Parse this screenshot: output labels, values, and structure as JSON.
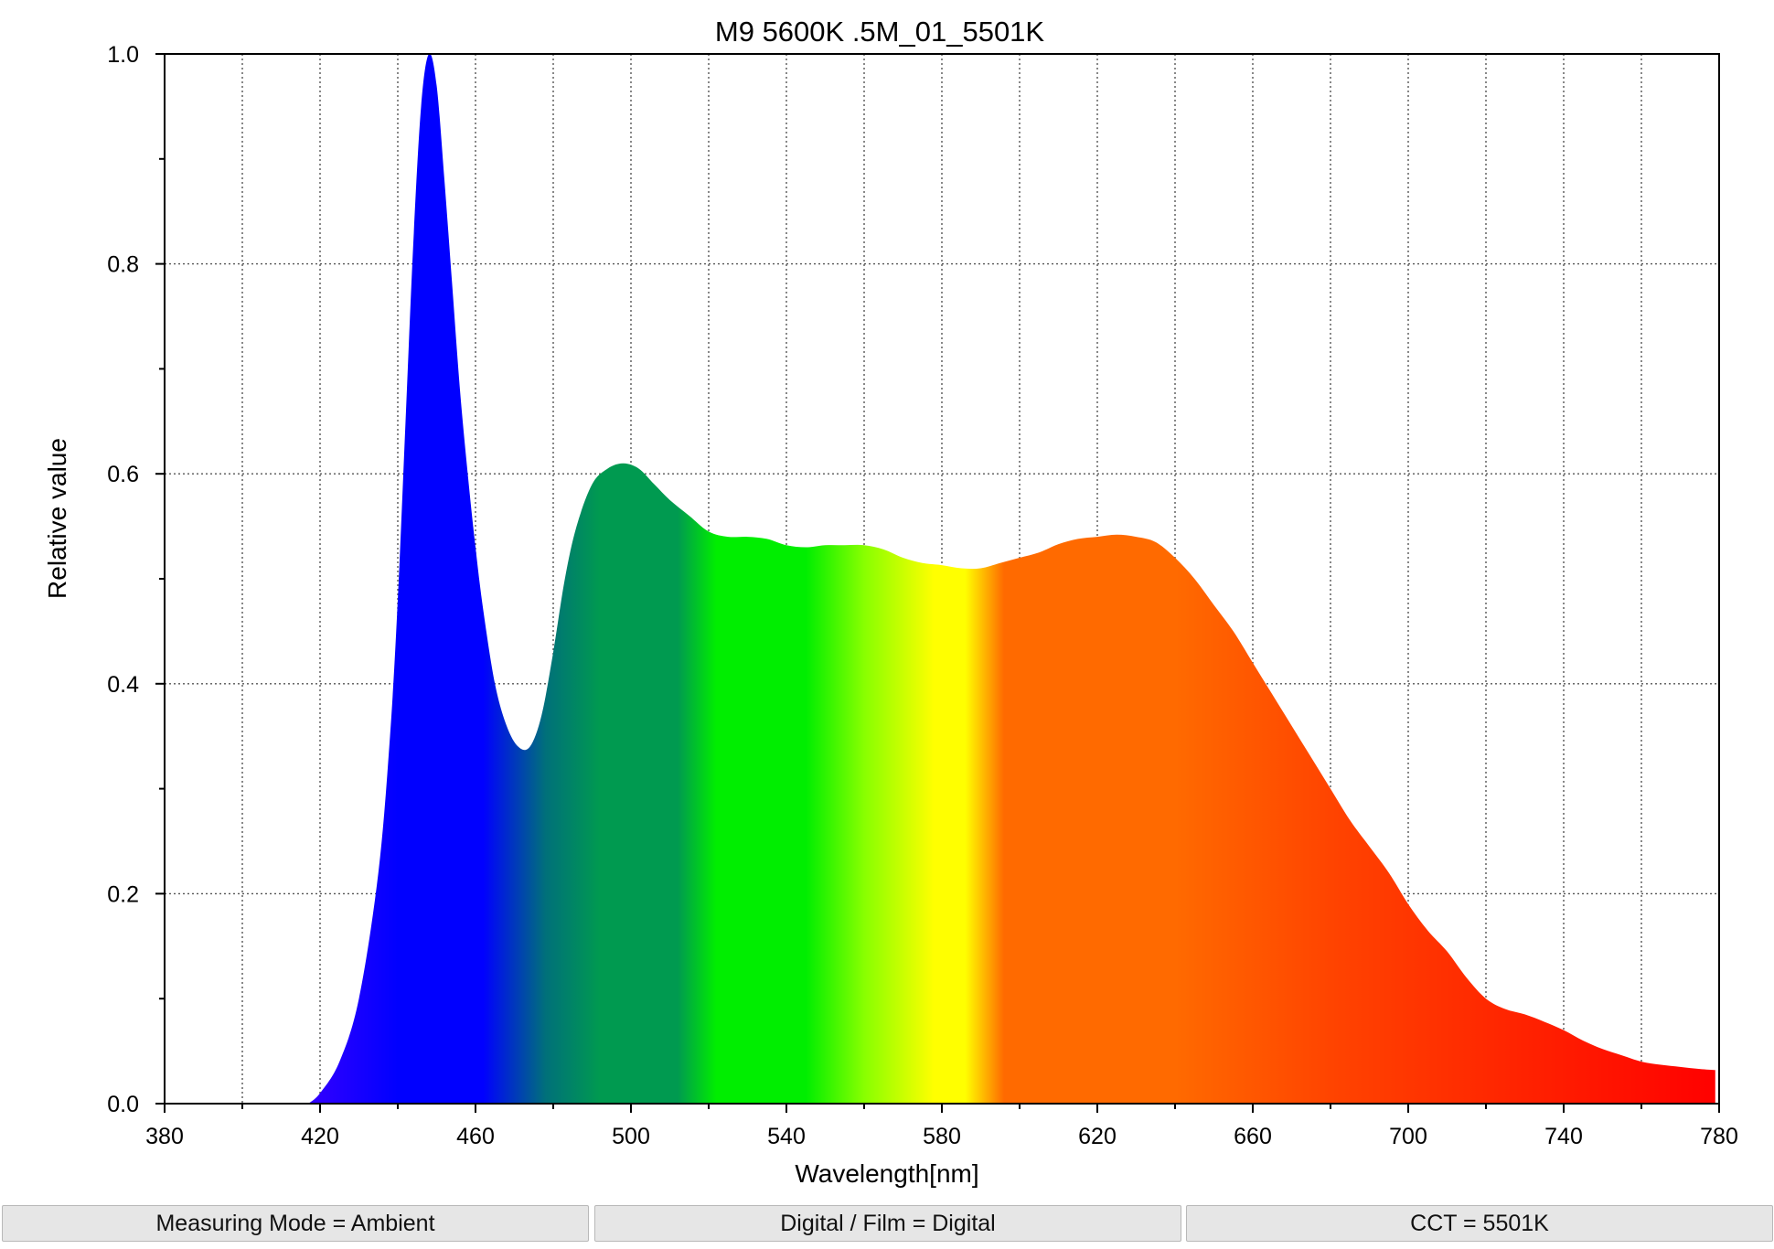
{
  "colors": {
    "violet": "#3300ff",
    "blue": "#0000ff",
    "teal_blue": "#00707a",
    "green_teal": "#009a50",
    "green": "#00ee00",
    "yellow_green": "#88ff00",
    "yellow": "#ffff00",
    "orange": "#ff6a00",
    "red_orange": "#ff4400",
    "red": "#ff0000",
    "grid": "#555555",
    "status_bg": "#e6e6e6"
  },
  "chart_data": {
    "type": "area",
    "title": "M9 5600K .5M_01_5501K",
    "xlabel": "Wavelength[nm]",
    "ylabel": "Relative value",
    "xlim": [
      380,
      780
    ],
    "ylim": [
      0,
      1.0
    ],
    "x_ticks": [
      380,
      420,
      460,
      500,
      540,
      580,
      620,
      660,
      700,
      740,
      780
    ],
    "x_tick_labels": [
      "380",
      "420",
      "460",
      "500",
      "540",
      "580",
      "620",
      "660",
      "700",
      "740",
      "780"
    ],
    "x_grid": [
      380,
      400,
      420,
      440,
      460,
      480,
      500,
      520,
      540,
      560,
      580,
      600,
      620,
      640,
      660,
      680,
      700,
      720,
      740,
      760,
      780
    ],
    "y_ticks": [
      0,
      0.2,
      0.4,
      0.6,
      0.8,
      1.0
    ],
    "y_tick_labels": [
      "0.0",
      "0.2",
      "0.4",
      "0.6",
      "0.8",
      "1.0"
    ],
    "grid": true,
    "fill": "visible spectrum colors",
    "series": [
      {
        "x": [
          417,
          420,
          425,
          430,
          435,
          438,
          440,
          442,
          444,
          446,
          448,
          450,
          452,
          454,
          456,
          458,
          460,
          462,
          465,
          468,
          471,
          474,
          477,
          480,
          483,
          486,
          490,
          494,
          498,
          502,
          506,
          510,
          515,
          520,
          525,
          530,
          535,
          540,
          545,
          550,
          555,
          560,
          565,
          570,
          575,
          580,
          585,
          590,
          595,
          600,
          605,
          610,
          615,
          620,
          625,
          630,
          635,
          640,
          645,
          650,
          655,
          660,
          665,
          670,
          675,
          680,
          685,
          690,
          695,
          700,
          705,
          710,
          715,
          720,
          725,
          730,
          735,
          740,
          745,
          750,
          755,
          760,
          765,
          770,
          775,
          779
        ],
        "y": [
          0.0,
          0.01,
          0.04,
          0.1,
          0.22,
          0.35,
          0.48,
          0.65,
          0.82,
          0.95,
          1.0,
          0.97,
          0.88,
          0.78,
          0.68,
          0.6,
          0.53,
          0.47,
          0.4,
          0.36,
          0.34,
          0.34,
          0.37,
          0.43,
          0.5,
          0.55,
          0.59,
          0.605,
          0.61,
          0.605,
          0.59,
          0.575,
          0.56,
          0.545,
          0.54,
          0.54,
          0.538,
          0.532,
          0.53,
          0.532,
          0.532,
          0.532,
          0.528,
          0.52,
          0.515,
          0.513,
          0.51,
          0.51,
          0.515,
          0.52,
          0.525,
          0.533,
          0.538,
          0.54,
          0.542,
          0.54,
          0.535,
          0.52,
          0.5,
          0.475,
          0.45,
          0.42,
          0.39,
          0.36,
          0.33,
          0.3,
          0.27,
          0.245,
          0.22,
          0.19,
          0.165,
          0.145,
          0.12,
          0.1,
          0.09,
          0.085,
          0.078,
          0.07,
          0.06,
          0.052,
          0.046,
          0.04,
          0.037,
          0.035,
          0.033,
          0.032
        ]
      }
    ]
  },
  "status_bar": {
    "items": [
      "Measuring Mode = Ambient",
      "Digital / Film = Digital",
      "CCT = 5501K"
    ]
  }
}
